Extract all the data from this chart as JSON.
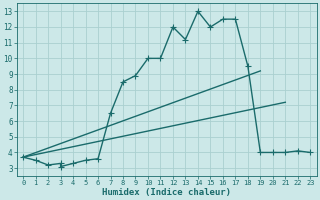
{
  "xlabel": "Humidex (Indice chaleur)",
  "bg_color": "#cce8e8",
  "grid_color": "#aad0d0",
  "line_color": "#1a6b6b",
  "xlim": [
    -0.5,
    23.5
  ],
  "ylim": [
    2.5,
    13.5
  ],
  "xticks": [
    0,
    1,
    2,
    3,
    4,
    5,
    6,
    7,
    8,
    9,
    10,
    11,
    12,
    13,
    14,
    15,
    16,
    17,
    18,
    19,
    20,
    21,
    22,
    23
  ],
  "yticks": [
    3,
    4,
    5,
    6,
    7,
    8,
    9,
    10,
    11,
    12,
    13
  ],
  "line1_x": [
    0,
    1,
    2,
    3,
    3,
    4,
    5,
    6,
    7,
    8,
    9,
    10,
    11,
    12,
    13,
    14,
    15,
    16,
    17,
    18,
    19,
    20,
    21,
    22,
    23
  ],
  "line1_y": [
    3.7,
    3.5,
    3.2,
    3.3,
    3.1,
    3.3,
    3.5,
    3.6,
    6.5,
    8.5,
    8.9,
    10.0,
    10.0,
    12.0,
    11.2,
    13.0,
    12.0,
    12.5,
    12.5,
    9.5,
    4.0,
    4.0,
    4.0,
    4.1,
    4.0
  ],
  "line2_x": [
    0,
    19
  ],
  "line2_y": [
    3.7,
    9.2
  ],
  "line3_x": [
    0,
    21
  ],
  "line3_y": [
    3.7,
    7.2
  ],
  "marker": "+",
  "markersize": 4,
  "linewidth": 1.0
}
